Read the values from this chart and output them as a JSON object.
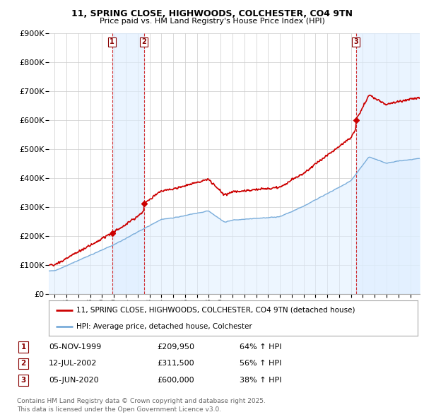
{
  "title_line1": "11, SPRING CLOSE, HIGHWOODS, COLCHESTER, CO4 9TN",
  "title_line2": "Price paid vs. HM Land Registry's House Price Index (HPI)",
  "background_color": "#ffffff",
  "grid_color": "#cccccc",
  "property_color": "#cc0000",
  "hpi_color": "#7aadda",
  "hpi_fill_color": "#ddeeff",
  "sale_region_color": "#ddeeff",
  "property_label": "11, SPRING CLOSE, HIGHWOODS, COLCHESTER, CO4 9TN (detached house)",
  "hpi_label": "HPI: Average price, detached house, Colchester",
  "sales": [
    {
      "num": 1,
      "date_label": "05-NOV-1999",
      "price_label": "£209,950",
      "hpi_label": "64% ↑ HPI",
      "year": 1999.84,
      "price": 209950
    },
    {
      "num": 2,
      "date_label": "12-JUL-2002",
      "price_label": "£311,500",
      "hpi_label": "56% ↑ HPI",
      "year": 2002.53,
      "price": 311500
    },
    {
      "num": 3,
      "date_label": "05-JUN-2020",
      "price_label": "£600,000",
      "hpi_label": "38% ↑ HPI",
      "year": 2020.42,
      "price": 600000
    }
  ],
  "footer_line1": "Contains HM Land Registry data © Crown copyright and database right 2025.",
  "footer_line2": "This data is licensed under the Open Government Licence v3.0.",
  "ylim": [
    0,
    900000
  ],
  "xlim_start": 1994.5,
  "xlim_end": 2025.8,
  "yticks": [
    0,
    100000,
    200000,
    300000,
    400000,
    500000,
    600000,
    700000,
    800000,
    900000
  ]
}
